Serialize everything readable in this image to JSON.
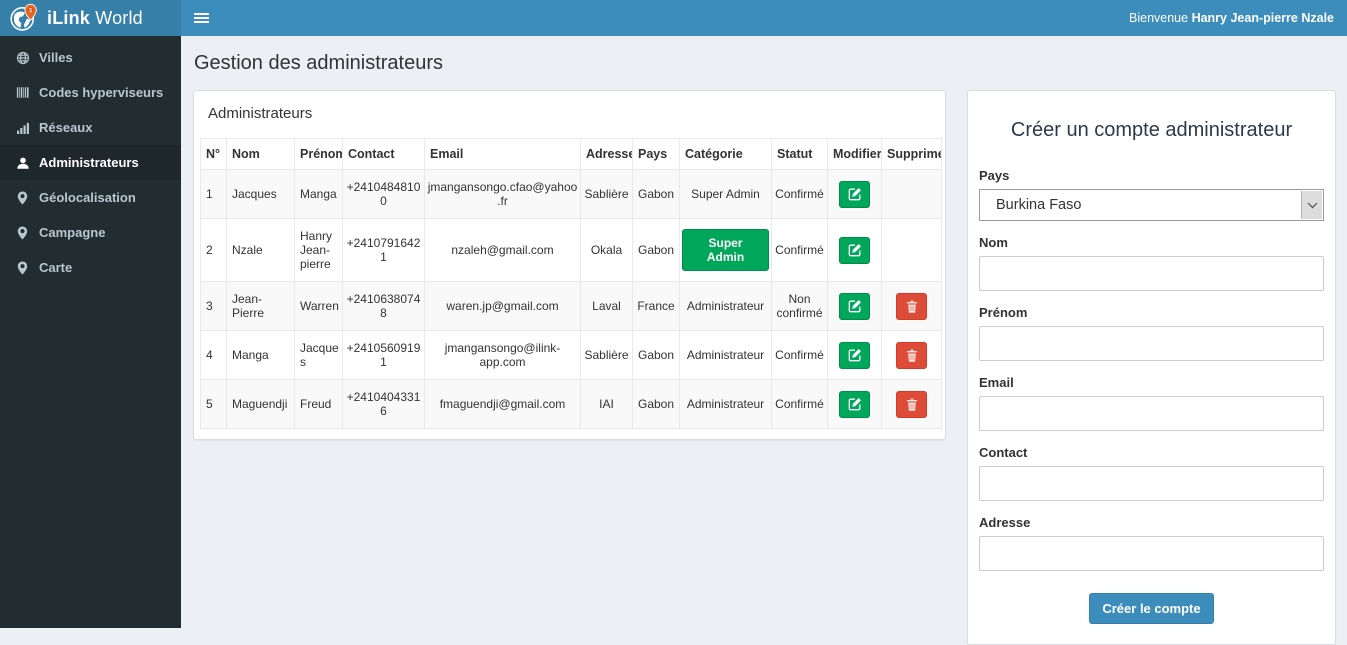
{
  "brand": {
    "name_bold": "iLink",
    "name_regular": " World"
  },
  "topbar": {
    "welcome_prefix": "Bienvenue ",
    "welcome_user": "Hanry Jean-pierre Nzale"
  },
  "sidebar": {
    "items": [
      {
        "id": "villes",
        "label": "Villes",
        "icon": "globe",
        "active": false
      },
      {
        "id": "codes-hyperviseurs",
        "label": "Codes hyperviseurs",
        "icon": "barcode",
        "active": false
      },
      {
        "id": "reseaux",
        "label": "Réseaux",
        "icon": "signal",
        "active": false
      },
      {
        "id": "administrateurs",
        "label": "Administrateurs",
        "icon": "user",
        "active": true
      },
      {
        "id": "geolocalisation",
        "label": "Géolocalisation",
        "icon": "marker",
        "active": false
      },
      {
        "id": "campagne",
        "label": "Campagne",
        "icon": "marker",
        "active": false
      },
      {
        "id": "carte",
        "label": "Carte",
        "icon": "marker",
        "active": false
      }
    ]
  },
  "page": {
    "title": "Gestion des administrateurs"
  },
  "admin_panel": {
    "title": "Administrateurs",
    "table": {
      "headers": [
        "N°",
        "Nom",
        "Prénom",
        "Contact",
        "Email",
        "Adresse",
        "Pays",
        "Catégorie",
        "Statut",
        "Modifier",
        "Supprimer"
      ],
      "rows": [
        {
          "num": "1",
          "nom": "Jacques",
          "prenom": "Manga",
          "contact": "+24104848100",
          "email": "jmangansongo.cfao@yahoo.fr",
          "adresse": "Sablière",
          "pays": "Gabon",
          "categorie": "Super Admin",
          "categorie_style": "text",
          "statut": "Confirmé",
          "can_delete": false
        },
        {
          "num": "2",
          "nom": "Nzale",
          "prenom": "Hanry Jean-pierre",
          "contact": "+24107916421",
          "email": "nzaleh@gmail.com",
          "adresse": "Okala",
          "pays": "Gabon",
          "categorie": "Super Admin",
          "categorie_style": "button",
          "statut": "Confirmé",
          "can_delete": false
        },
        {
          "num": "3",
          "nom": "Jean-Pierre",
          "prenom": "Warren",
          "contact": "+24106380748",
          "email": "waren.jp@gmail.com",
          "adresse": "Laval",
          "pays": "France",
          "categorie": "Administrateur",
          "categorie_style": "text",
          "statut": "Non confirmé",
          "can_delete": true
        },
        {
          "num": "4",
          "nom": "Manga",
          "prenom": "Jacques",
          "contact": "+24105609191",
          "email": "jmangansongo@ilink-app.com",
          "adresse": "Sablière",
          "pays": "Gabon",
          "categorie": "Administrateur",
          "categorie_style": "text",
          "statut": "Confirmé",
          "can_delete": true
        },
        {
          "num": "5",
          "nom": "Maguendji",
          "prenom": "Freud",
          "contact": "+24104043316",
          "email": "fmaguendji@gmail.com",
          "adresse": "IAI",
          "pays": "Gabon",
          "categorie": "Administrateur",
          "categorie_style": "text",
          "statut": "Confirmé",
          "can_delete": true
        }
      ]
    }
  },
  "create_form": {
    "title": "Créer un compte administrateur",
    "fields": [
      {
        "id": "pays",
        "label": "Pays",
        "control": "select",
        "value": "Burkina Faso"
      },
      {
        "id": "nom",
        "label": "Nom",
        "control": "text",
        "value": ""
      },
      {
        "id": "prenom",
        "label": "Prénom",
        "control": "text",
        "value": ""
      },
      {
        "id": "email",
        "label": "Email",
        "control": "text",
        "value": ""
      },
      {
        "id": "contact",
        "label": "Contact",
        "control": "text",
        "value": ""
      },
      {
        "id": "adresse",
        "label": "Adresse",
        "control": "text",
        "value": ""
      }
    ],
    "submit_label": "Créer le compte"
  },
  "colors": {
    "navbar_blue": "#3c8dbc",
    "logo_blue": "#367fa9",
    "sidebar_dark": "#222d32",
    "success_green": "#00a65a",
    "danger_red": "#dd4b39",
    "body_bg": "#ecf0f5",
    "pin_orange": "#e8641f"
  }
}
